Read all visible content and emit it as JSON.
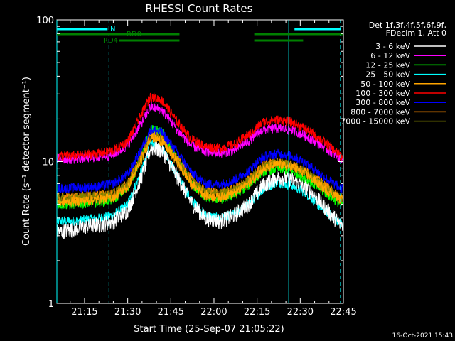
{
  "chart_data": {
    "type": "line",
    "title": "RHESSI Count Rates",
    "xlabel": "Start Time (25-Sep-07 21:05:22)",
    "ylabel": "Count Rate (s⁻¹ detector segment⁻¹)",
    "yscale": "log",
    "ylim": [
      1,
      100
    ],
    "xlim": [
      "21:05:22",
      "22:45:00"
    ],
    "x_ticks": [
      "21:15",
      "21:30",
      "21:45",
      "22:00",
      "22:15",
      "22:30",
      "22:45"
    ],
    "y_ticks": [
      "1",
      "10",
      "100"
    ],
    "grid": false,
    "legend_position": "top-right",
    "legend_header": [
      "Det 1f,3f,4f,5f,6f,9f,",
      "FDecim 1, Att 0"
    ],
    "x_time_points": [
      "21:05",
      "21:10",
      "21:15",
      "21:20",
      "21:25",
      "21:30",
      "21:35",
      "21:38",
      "21:42",
      "21:47",
      "21:52",
      "21:57",
      "22:02",
      "22:07",
      "22:12",
      "22:17",
      "22:22",
      "22:27",
      "22:32",
      "22:37",
      "22:42",
      "22:44"
    ],
    "series": [
      {
        "name": "3 - 6 keV",
        "color": "#ffffff",
        "values": [
          3.2,
          3.3,
          3.5,
          3.6,
          3.8,
          4.6,
          8.0,
          12.5,
          12.0,
          8.0,
          5.2,
          4.0,
          3.8,
          4.2,
          5.0,
          6.8,
          7.8,
          7.5,
          6.6,
          5.2,
          4.0,
          3.6
        ]
      },
      {
        "name": "6 - 12 keV",
        "color": "#ff00ff",
        "values": [
          10.5,
          10.4,
          10.6,
          10.8,
          11.2,
          13.0,
          19.0,
          24.5,
          23.0,
          17.0,
          13.0,
          11.8,
          11.5,
          12.0,
          14.0,
          16.8,
          17.2,
          16.8,
          15.2,
          13.2,
          11.2,
          10.6
        ]
      },
      {
        "name": "12 - 25 keV",
        "color": "#00ff00",
        "values": [
          5.0,
          5.0,
          5.1,
          5.2,
          5.4,
          6.5,
          11.0,
          17.0,
          16.0,
          10.5,
          7.0,
          5.6,
          5.4,
          5.8,
          6.8,
          8.5,
          9.0,
          8.6,
          7.6,
          6.4,
          5.4,
          5.0
        ]
      },
      {
        "name": "25 - 50 keV",
        "color": "#00ffff",
        "values": [
          3.8,
          3.8,
          3.9,
          4.0,
          4.2,
          5.0,
          8.8,
          13.5,
          12.5,
          8.2,
          5.4,
          4.2,
          4.0,
          4.3,
          5.0,
          6.4,
          7.2,
          6.8,
          6.0,
          4.8,
          4.0,
          3.7
        ]
      },
      {
        "name": "50 - 100 keV",
        "color": "#ffa500",
        "values": [
          5.2,
          5.2,
          5.3,
          5.4,
          5.6,
          6.6,
          10.5,
          15.0,
          14.0,
          10.0,
          7.0,
          5.8,
          5.6,
          6.0,
          7.0,
          8.8,
          9.6,
          9.2,
          8.2,
          6.8,
          5.8,
          5.4
        ]
      },
      {
        "name": "100 - 300 keV",
        "color": "#ff0000",
        "values": [
          11.0,
          11.0,
          11.2,
          11.4,
          12.0,
          14.0,
          22.0,
          29.0,
          27.0,
          19.5,
          14.5,
          12.8,
          12.5,
          13.2,
          15.5,
          19.0,
          19.8,
          19.0,
          17.0,
          14.5,
          12.0,
          11.0
        ]
      },
      {
        "name": "300 - 800 keV",
        "color": "#0000ff",
        "values": [
          6.5,
          6.5,
          6.6,
          6.7,
          7.0,
          8.2,
          12.5,
          17.0,
          16.0,
          11.8,
          8.5,
          7.0,
          6.9,
          7.4,
          8.6,
          10.8,
          11.4,
          11.0,
          9.8,
          8.2,
          6.9,
          6.5
        ]
      },
      {
        "name": "800 - 7000 keV",
        "color": "#ff8c00",
        "values": [
          5.6,
          5.6,
          5.7,
          5.8,
          6.0,
          7.0,
          11.2,
          15.6,
          14.6,
          10.6,
          7.6,
          6.2,
          6.0,
          6.4,
          7.4,
          9.4,
          10.0,
          9.6,
          8.6,
          7.2,
          6.0,
          5.6
        ]
      },
      {
        "name": "7000 - 15000 keV",
        "color": "#808000",
        "values": [
          5.5,
          5.5,
          5.6,
          5.7,
          5.9,
          6.9,
          11.0,
          15.4,
          14.4,
          10.4,
          7.4,
          6.1,
          5.9,
          6.3,
          7.3,
          9.2,
          9.8,
          9.4,
          8.4,
          7.0,
          5.9,
          5.5
        ]
      }
    ],
    "flags": [
      {
        "label": "N",
        "color": "#00ffff",
        "segments": [
          [
            "21:05:22",
            "21:23:00"
          ],
          [
            "22:28:00",
            "22:44:00"
          ]
        ]
      },
      {
        "label": "RD0",
        "color": "#008000",
        "segments": [
          [
            "21:05:22",
            "21:48:00"
          ],
          [
            "22:14:00",
            "22:45:00"
          ]
        ]
      },
      {
        "label": "RD4",
        "color": "#008000",
        "segments": [
          [
            "21:27:00",
            "21:48:00"
          ],
          [
            "22:14:00",
            "22:31:00"
          ]
        ]
      }
    ],
    "vertical_lines": [
      {
        "time": "21:05:22",
        "style": "solid",
        "color": "#00ffff"
      },
      {
        "time": "21:23:30",
        "style": "dashed",
        "color": "#00ffff"
      },
      {
        "time": "22:26:00",
        "style": "solid",
        "color": "#00ffff"
      },
      {
        "time": "22:44:00",
        "style": "dashed",
        "color": "#00ffff"
      }
    ],
    "timestamp": "16-Oct-2021 15:43"
  }
}
